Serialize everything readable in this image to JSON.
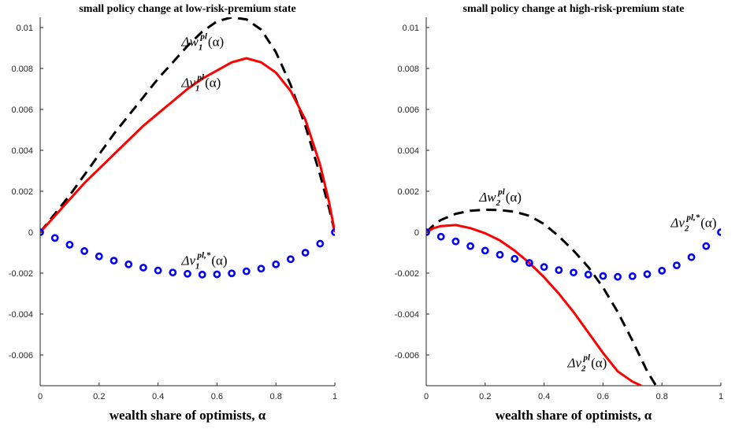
{
  "chart_data": [
    {
      "type": "line",
      "title": "small policy change at low-risk-premium state",
      "xlabel": "wealth share of optimists, α",
      "xlim": [
        0,
        1
      ],
      "ylim": [
        -0.0075,
        0.0105
      ],
      "xticks": [
        0,
        0.2,
        0.4,
        0.6,
        0.8,
        1
      ],
      "xtick_labels": [
        "0",
        "0.2",
        "0.4",
        "0.6",
        "0.8",
        "1"
      ],
      "yticks": [
        -0.006,
        -0.004,
        -0.002,
        0,
        0.002,
        0.004,
        0.006,
        0.008,
        0.01
      ],
      "ytick_labels": [
        "-0.006",
        "-0.004",
        "-0.002",
        "0",
        "0.002",
        "0.004",
        "0.006",
        "0.008",
        "0.01"
      ],
      "grid": false,
      "series": [
        {
          "name": "Δw1pl(α)",
          "style": "dashed",
          "color": "#000000",
          "x": [
            0,
            0.025,
            0.05,
            0.1,
            0.15,
            0.2,
            0.25,
            0.3,
            0.35,
            0.4,
            0.45,
            0.5,
            0.55,
            0.6,
            0.65,
            0.7,
            0.75,
            0.8,
            0.85,
            0.9,
            0.95,
            0.98,
            1
          ],
          "y": [
            0,
            0.00045,
            0.0009,
            0.0018,
            0.0028,
            0.0038,
            0.0048,
            0.0057,
            0.0066,
            0.0075,
            0.0083,
            0.0091,
            0.0098,
            0.0103,
            0.0105,
            0.0104,
            0.0099,
            0.0088,
            0.0072,
            0.0052,
            0.0028,
            0.0012,
            0
          ]
        },
        {
          "name": "Δv1pl(α)",
          "style": "solid",
          "color": "#ff0000",
          "x": [
            0,
            0.025,
            0.05,
            0.1,
            0.15,
            0.2,
            0.25,
            0.3,
            0.35,
            0.4,
            0.45,
            0.5,
            0.55,
            0.6,
            0.65,
            0.7,
            0.75,
            0.8,
            0.85,
            0.9,
            0.95,
            0.98,
            1
          ],
          "y": [
            0,
            0.0004,
            0.0008,
            0.0016,
            0.0024,
            0.0031,
            0.0038,
            0.0045,
            0.0052,
            0.0058,
            0.0064,
            0.007,
            0.0075,
            0.0079,
            0.0083,
            0.0085,
            0.0083,
            0.0078,
            0.0069,
            0.0055,
            0.0033,
            0.0015,
            0
          ]
        },
        {
          "name": "Δv1pl,*(α)",
          "style": "markers",
          "color": "#0000ff",
          "x": [
            0,
            0.05,
            0.1,
            0.15,
            0.2,
            0.25,
            0.3,
            0.35,
            0.4,
            0.45,
            0.5,
            0.55,
            0.6,
            0.65,
            0.7,
            0.75,
            0.8,
            0.85,
            0.9,
            0.95,
            1
          ],
          "y": [
            0,
            -0.00028,
            -0.00061,
            -0.00092,
            -0.00118,
            -0.00139,
            -0.00157,
            -0.00173,
            -0.00187,
            -0.00197,
            -0.00203,
            -0.00207,
            -0.00206,
            -0.00201,
            -0.00191,
            -0.00178,
            -0.00157,
            -0.00132,
            -0.001,
            -0.00056,
            0
          ]
        }
      ],
      "annotations": [
        {
          "base": "Δw",
          "sub": "1",
          "sup": "pl",
          "tail": "(α)",
          "x": 0.48,
          "y": 0.0091
        },
        {
          "base": "Δv",
          "sub": "1",
          "sup": "pl",
          "tail": "(α)",
          "x": 0.48,
          "y": 0.0071
        },
        {
          "base": "Δv",
          "sub": "1",
          "sup": "pl,*",
          "tail": "(α)",
          "x": 0.48,
          "y": -0.0016
        }
      ]
    },
    {
      "type": "line",
      "title": "small policy change at high-risk-premium state",
      "xlabel": "wealth share of optimists, α",
      "xlim": [
        0,
        1
      ],
      "ylim": [
        -0.0075,
        0.0105
      ],
      "xticks": [
        0,
        0.2,
        0.4,
        0.6,
        0.8,
        1
      ],
      "xtick_labels": [
        "0",
        "0.2",
        "0.4",
        "0.6",
        "0.8",
        "1"
      ],
      "yticks": [
        -0.006,
        -0.004,
        -0.002,
        0,
        0.002,
        0.004,
        0.006,
        0.008,
        0.01
      ],
      "ytick_labels": [
        "-0.006",
        "-0.004",
        "-0.002",
        "0",
        "0.002",
        "0.004",
        "0.006",
        "0.008",
        "0.01"
      ],
      "grid": false,
      "series": [
        {
          "name": "Δw2pl(α)",
          "style": "dashed",
          "color": "#000000",
          "x": [
            0,
            0.025,
            0.05,
            0.1,
            0.15,
            0.2,
            0.25,
            0.3,
            0.35,
            0.4,
            0.45,
            0.5,
            0.55,
            0.6,
            0.65,
            0.7,
            0.75,
            0.78
          ],
          "y": [
            0,
            0.00035,
            0.0006,
            0.0009,
            0.00105,
            0.0011,
            0.00108,
            0.001,
            0.0008,
            0.0004,
            -0.0002,
            -0.0009,
            -0.0017,
            -0.0027,
            -0.0039,
            -0.0053,
            -0.0068,
            -0.0075
          ]
        },
        {
          "name": "Δv2pl(α)",
          "style": "solid",
          "color": "#ff0000",
          "x": [
            0,
            0.025,
            0.05,
            0.1,
            0.15,
            0.2,
            0.25,
            0.3,
            0.35,
            0.4,
            0.45,
            0.5,
            0.55,
            0.6,
            0.65,
            0.7,
            0.73
          ],
          "y": [
            0,
            0.0002,
            0.0003,
            0.00035,
            0.0002,
            -5e-05,
            -0.0004,
            -0.0009,
            -0.0015,
            -0.0022,
            -0.003,
            -0.0039,
            -0.0049,
            -0.0059,
            -0.0068,
            -0.0073,
            -0.0075
          ]
        },
        {
          "name": "Δv2pl,*(α)",
          "style": "markers",
          "color": "#0000ff",
          "x": [
            0,
            0.05,
            0.1,
            0.15,
            0.2,
            0.25,
            0.3,
            0.35,
            0.4,
            0.45,
            0.5,
            0.55,
            0.6,
            0.65,
            0.7,
            0.75,
            0.8,
            0.85,
            0.9,
            0.95,
            1
          ],
          "y": [
            0,
            -0.00022,
            -0.00045,
            -0.00068,
            -0.0009,
            -0.0011,
            -0.0013,
            -0.0015,
            -0.0017,
            -0.00185,
            -0.00197,
            -0.00207,
            -0.00214,
            -0.00218,
            -0.00215,
            -0.00205,
            -0.00188,
            -0.00162,
            -0.00122,
            -0.00068,
            0
          ]
        }
      ],
      "annotations": [
        {
          "base": "Δw",
          "sub": "2",
          "sup": "pl",
          "tail": "(α)",
          "x": 0.18,
          "y": 0.0015
        },
        {
          "base": "Δv",
          "sub": "2",
          "sup": "pl,*",
          "tail": "(α)",
          "x": 0.83,
          "y": 0.00025
        },
        {
          "base": "Δv",
          "sub": "2",
          "sup": "pl",
          "tail": "(α)",
          "x": 0.48,
          "y": -0.0066
        }
      ]
    }
  ]
}
